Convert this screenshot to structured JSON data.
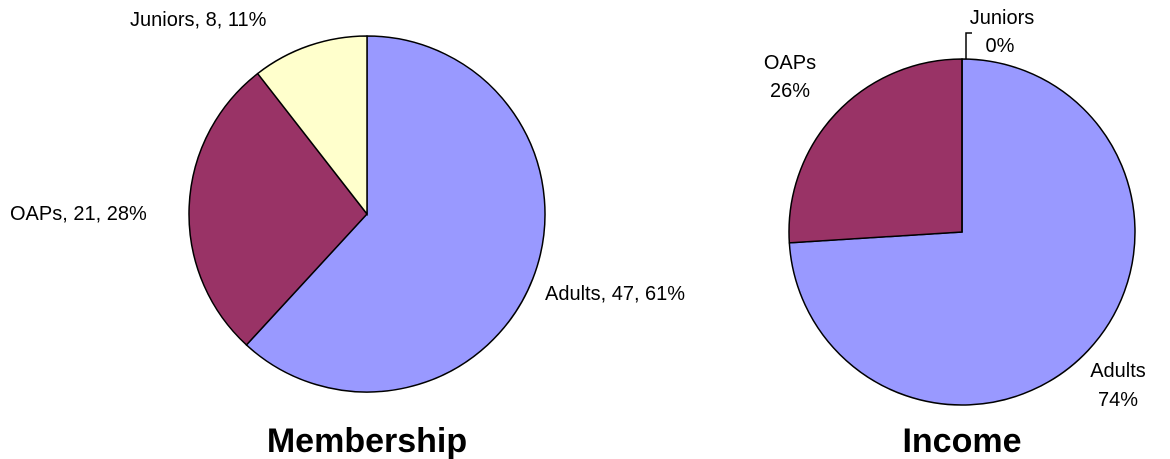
{
  "chart_data": [
    {
      "type": "pie",
      "title": "Membership",
      "values": [
        47,
        21,
        8
      ],
      "value_labels": [
        [
          "Adults, 47, 61%"
        ],
        [
          "OAPs, 21, 28%"
        ],
        [
          "Juniors, 8, 11%"
        ]
      ],
      "colors": [
        "#9999ff",
        "#993366",
        "#ffffcc"
      ]
    },
    {
      "type": "pie",
      "title": "Income",
      "values": [
        74,
        26,
        0
      ],
      "value_labels": [
        [
          "Adults",
          "74%"
        ],
        [
          "OAPs",
          "26%"
        ],
        [
          "Juniors",
          "0%"
        ]
      ],
      "colors": [
        "#9999ff",
        "#993366",
        "#ffffcc"
      ]
    }
  ]
}
